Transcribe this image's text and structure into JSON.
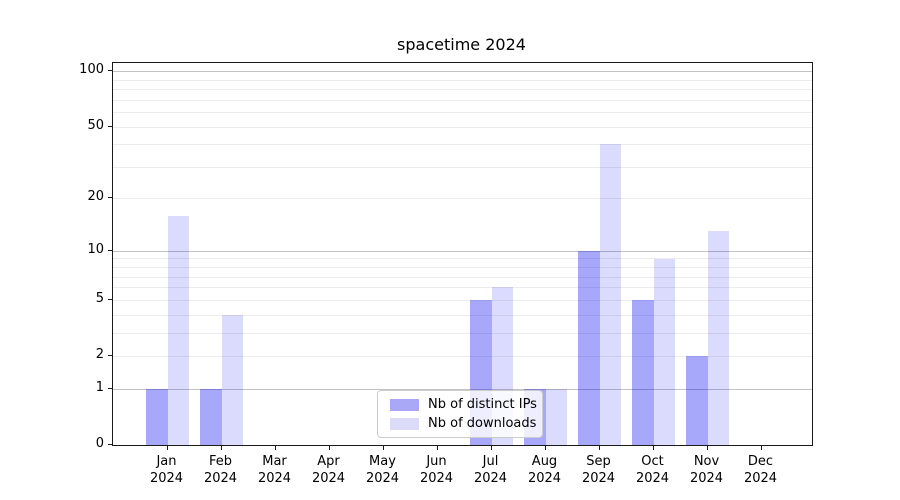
{
  "title": "spacetime 2024",
  "chart_data": {
    "type": "bar",
    "title": "spacetime 2024",
    "categories": [
      {
        "month": "Jan",
        "year": "2024"
      },
      {
        "month": "Feb",
        "year": "2024"
      },
      {
        "month": "Mar",
        "year": "2024"
      },
      {
        "month": "Apr",
        "year": "2024"
      },
      {
        "month": "May",
        "year": "2024"
      },
      {
        "month": "Jun",
        "year": "2024"
      },
      {
        "month": "Jul",
        "year": "2024"
      },
      {
        "month": "Aug",
        "year": "2024"
      },
      {
        "month": "Sep",
        "year": "2024"
      },
      {
        "month": "Oct",
        "year": "2024"
      },
      {
        "month": "Nov",
        "year": "2024"
      },
      {
        "month": "Dec",
        "year": "2024"
      }
    ],
    "series": [
      {
        "name": "Nb of distinct IPs",
        "color": "rgba(0,0,240,0.34)",
        "legend_color": "#a8a8f7",
        "values": [
          1,
          1,
          0,
          0,
          0,
          0,
          5,
          1,
          10,
          5,
          2,
          0
        ]
      },
      {
        "name": "Nb of downloads",
        "color": "rgba(0,0,240,0.14)",
        "legend_color": "#dcdcfa",
        "values": [
          16,
          4,
          0,
          0,
          0,
          0,
          6,
          1,
          40,
          9,
          13,
          0
        ]
      }
    ],
    "y_axis": {
      "scale": "log1p",
      "ylim": [
        0,
        111
      ],
      "tick_labels": [
        100,
        50,
        20,
        10,
        5,
        2,
        1,
        0
      ],
      "major_gridlines": [
        1,
        10,
        100
      ],
      "minor_gridlines": [
        2,
        3,
        4,
        5,
        6,
        7,
        8,
        9,
        20,
        30,
        40,
        50,
        60,
        70,
        80,
        90
      ]
    },
    "legend_position": "lower center",
    "grid": true
  }
}
